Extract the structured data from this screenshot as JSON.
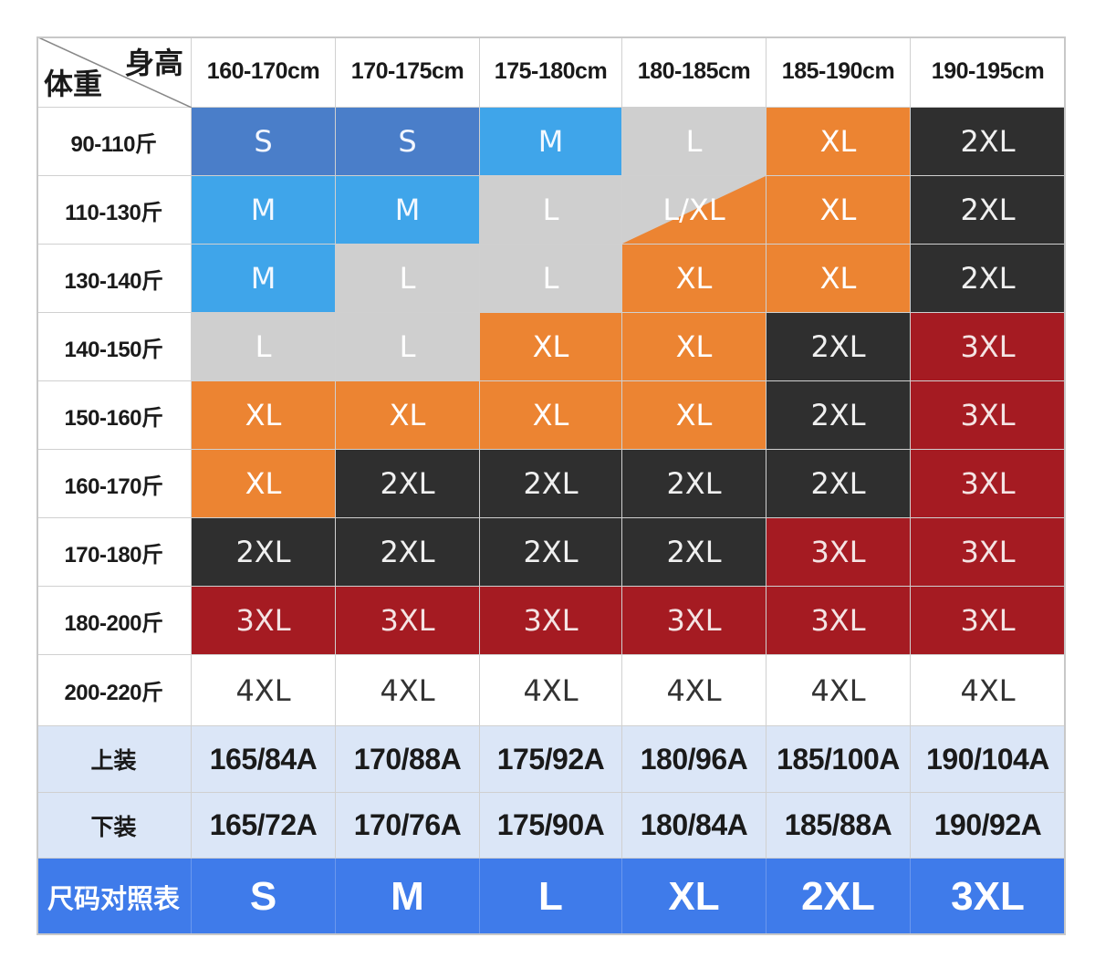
{
  "corner": {
    "height_label": "身高",
    "weight_label": "体重"
  },
  "height_ranges": [
    "160-170cm",
    "170-175cm",
    "175-180cm",
    "180-185cm",
    "185-190cm",
    "190-195cm"
  ],
  "weight_ranges": [
    "90-110斤",
    "110-130斤",
    "130-140斤",
    "140-150斤",
    "150-160斤",
    "160-170斤",
    "170-180斤",
    "180-200斤",
    "200-220斤"
  ],
  "colors": {
    "S": "#4a7ec9",
    "M": "#3fa5ea",
    "L": "#cfcfcf",
    "XL": "#ec8432",
    "2XL": "#2f2f2f",
    "3XL": "#a51b22",
    "4XL": "#ffffff",
    "L/XL": "split"
  },
  "text_colors": {
    "S": "#f2f6ff",
    "M": "#f2f8ff",
    "L": "#ffffff",
    "XL": "#ffffff",
    "2XL": "#f0f0f0",
    "3XL": "#f4e4e4",
    "4XL": "#333333",
    "L/XL": "#ffffff"
  },
  "grid": [
    [
      "S",
      "S",
      "M",
      "L",
      "XL",
      "2XL"
    ],
    [
      "M",
      "M",
      "L",
      "L/XL",
      "XL",
      "2XL"
    ],
    [
      "M",
      "L",
      "L",
      "XL",
      "XL",
      "2XL"
    ],
    [
      "L",
      "L",
      "XL",
      "XL",
      "2XL",
      "3XL"
    ],
    [
      "XL",
      "XL",
      "XL",
      "XL",
      "2XL",
      "3XL"
    ],
    [
      "XL",
      "2XL",
      "2XL",
      "2XL",
      "2XL",
      "3XL"
    ],
    [
      "2XL",
      "2XL",
      "2XL",
      "2XL",
      "3XL",
      "3XL"
    ],
    [
      "3XL",
      "3XL",
      "3XL",
      "3XL",
      "3XL",
      "3XL"
    ],
    [
      "4XL",
      "4XL",
      "4XL",
      "4XL",
      "4XL",
      "4XL"
    ]
  ],
  "top_wear": {
    "label": "上装",
    "values": [
      "165/84A",
      "170/88A",
      "175/92A",
      "180/96A",
      "185/100A",
      "190/104A"
    ]
  },
  "bottom_wear": {
    "label": "下装",
    "values": [
      "165/72A",
      "170/76A",
      "175/90A",
      "180/84A",
      "185/88A",
      "190/92A"
    ]
  },
  "size_reference": {
    "label": "尺码对照表",
    "values": [
      "S",
      "M",
      "L",
      "XL",
      "2XL",
      "3XL"
    ]
  }
}
